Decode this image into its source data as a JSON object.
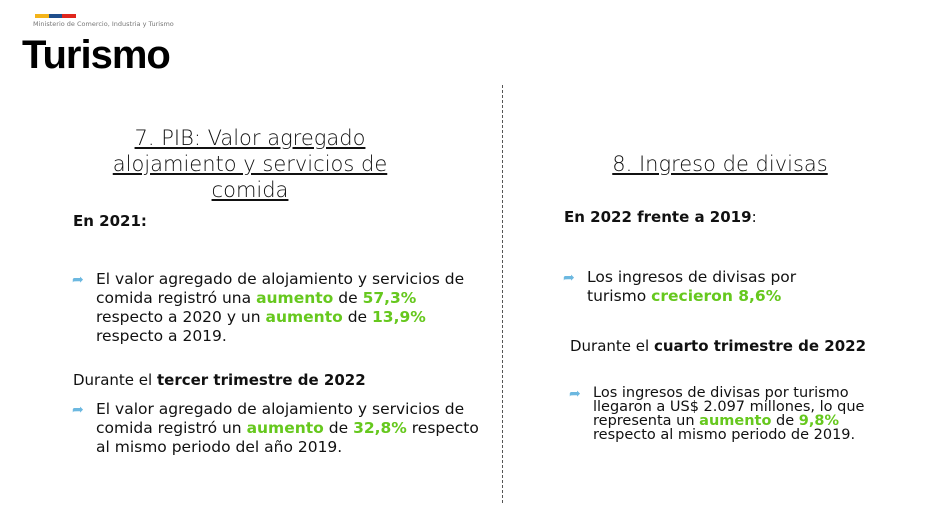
{
  "header": {
    "ministry": "Ministerio de Comercio, Industria y Turismo",
    "brand": "Turismo",
    "flag_colors": [
      "#f4b41a",
      "#1f4e8c",
      "#e0261c"
    ]
  },
  "colors": {
    "highlight": "#66c81e",
    "icon": "#6cb8e0"
  },
  "left": {
    "title": "7. PIB: Valor agregado alojamiento y servicios de comida",
    "year_label": "En 2021:",
    "bullet1": {
      "icon": "curved-arrow-icon",
      "t1": "El valor agregado de alojamiento y servicios de comida registró una ",
      "h1": "aumento",
      "t2": " de ",
      "h2": "57,3%",
      "t3": " respecto a 2020 y un ",
      "h3": "aumento",
      "t4": " de ",
      "h4": "13,9%",
      "t5": " respecto a 2019."
    },
    "period_pre": "Durante el ",
    "period_bold": "tercer trimestre de 2022",
    "bullet2": {
      "icon": "curved-arrow-icon",
      "t1": "El valor agregado de alojamiento y servicios de comida registró un ",
      "h1": "aumento",
      "t2": " de ",
      "h2": "32,8%",
      "t3": " respecto al mismo periodo del año 2019."
    }
  },
  "right": {
    "title": "8. Ingreso de divisas",
    "year_bold": "En 2022 frente a 2019",
    "year_suffix": ":",
    "bullet1": {
      "icon": "curved-arrow-icon",
      "t1": "Los ingresos de divisas por turismo ",
      "h1": "crecieron 8,6%"
    },
    "period_pre": "Durante el ",
    "period_bold": "cuarto trimestre de 2022",
    "bullet2": {
      "icon": "curved-arrow-icon",
      "t1": "Los ingresos de divisas por turismo llegaron a US$ 2.097 millones, lo que representa un ",
      "h1": "aumento",
      "t2": " de ",
      "h2": "9,8%",
      "t3": " respecto al mismo periodo de 2019."
    }
  }
}
